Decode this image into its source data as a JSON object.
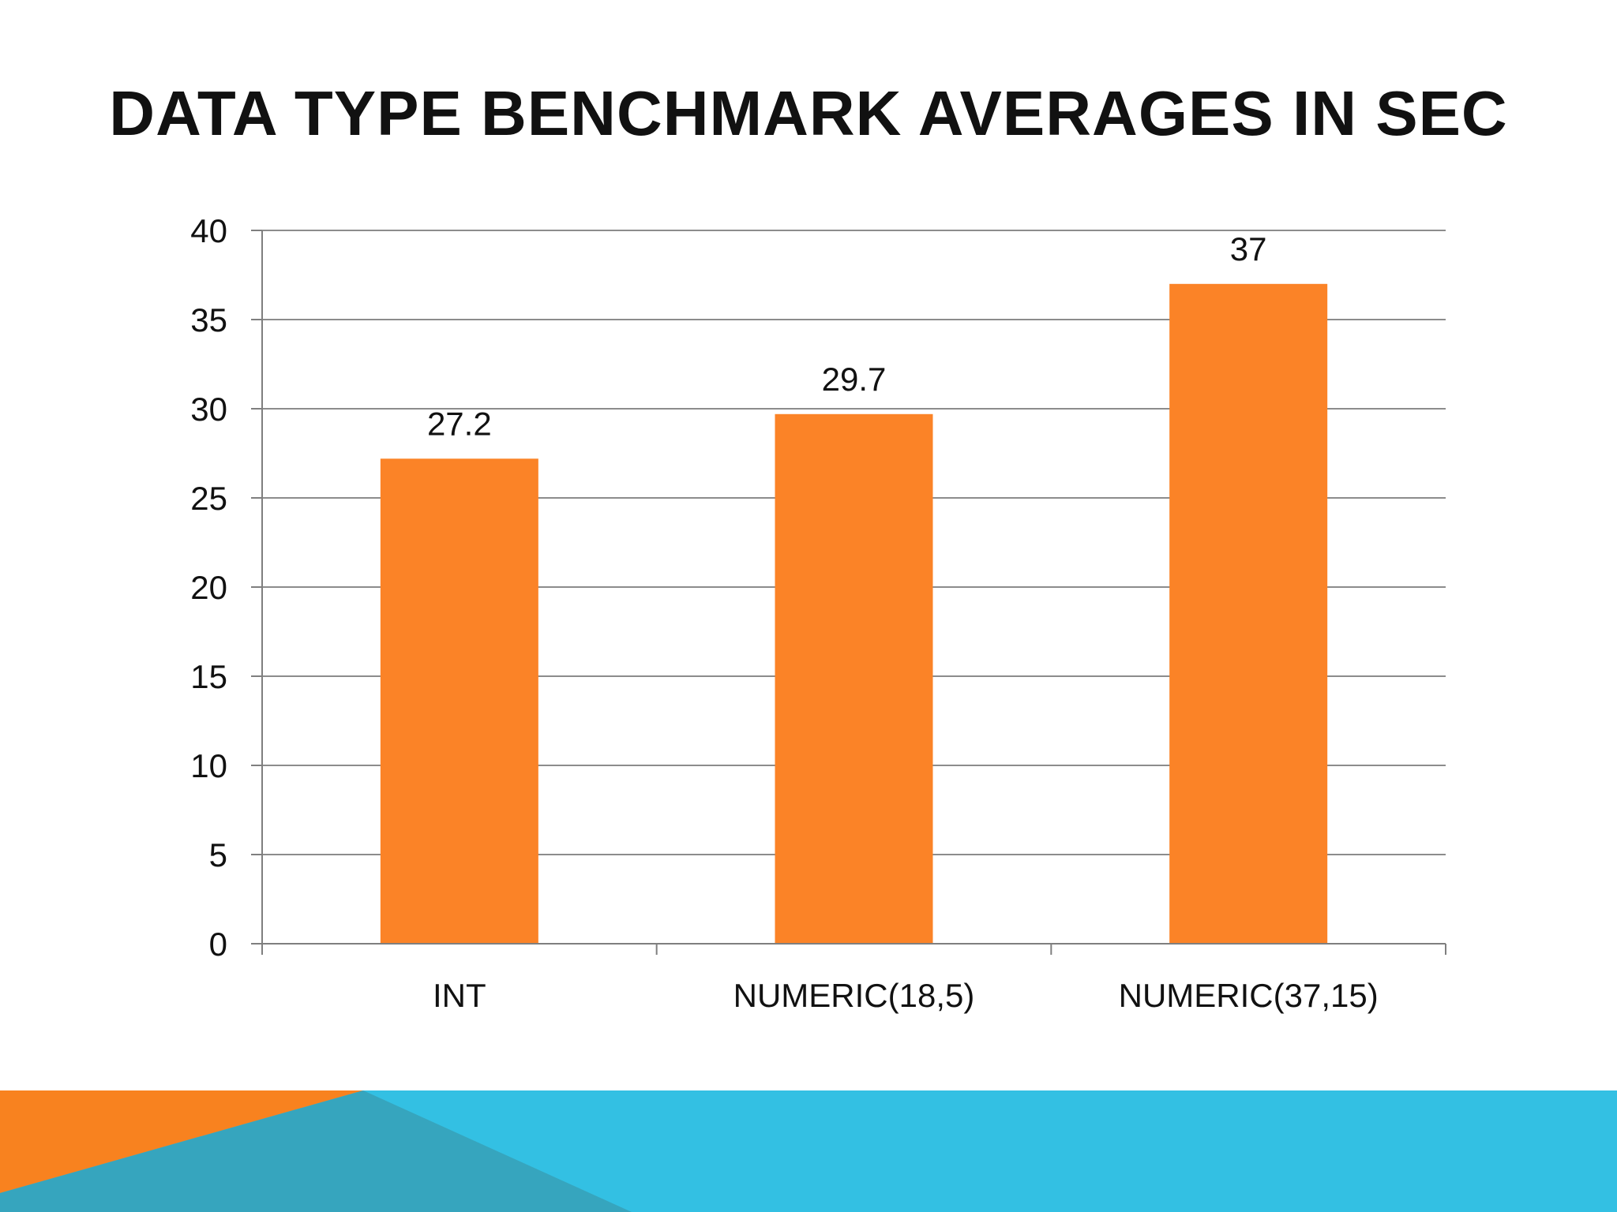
{
  "slide": {
    "title": "DATA TYPE BENCHMARK AVERAGES IN SEC"
  },
  "colors": {
    "bar": "#fb8327",
    "gridline": "#8c8c8c",
    "axis": "#7f7f7f",
    "text": "#111111",
    "footer_orange": "#f8821f",
    "footer_blue": "#33c0e3",
    "footer_teal": "#36a5be"
  },
  "chart_data": {
    "type": "bar",
    "title": "",
    "xlabel": "",
    "ylabel": "",
    "categories": [
      "INT",
      "NUMERIC(18,5)",
      "NUMERIC(37,15)"
    ],
    "values": [
      27.2,
      29.7,
      37
    ],
    "data_labels": [
      "27.2",
      "29.7",
      "37"
    ],
    "ylim": [
      0,
      40
    ],
    "yticks": [
      0,
      5,
      10,
      15,
      20,
      25,
      30,
      35,
      40
    ],
    "grid": true,
    "legend": "none"
  }
}
